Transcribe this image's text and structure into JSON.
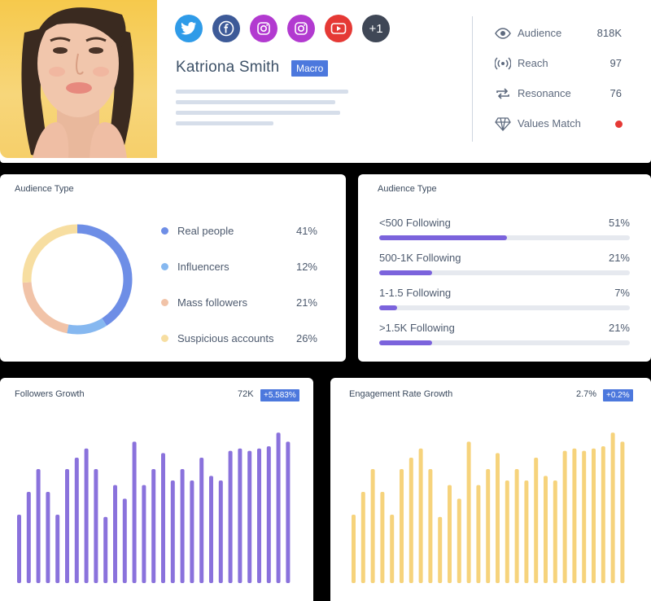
{
  "profile": {
    "name": "Katriona Smith",
    "badge": "Macro",
    "socials": [
      {
        "icon": "twitter-icon",
        "color": "#2f9be8"
      },
      {
        "icon": "facebook-icon",
        "color": "#3d5a98"
      },
      {
        "icon": "instagram-icon",
        "color": "#b23ad0"
      },
      {
        "icon": "instagram-icon",
        "color": "#b23ad0"
      },
      {
        "icon": "youtube-icon",
        "color": "#e53935"
      },
      {
        "icon": "more-icon",
        "color": "#3f4756"
      }
    ],
    "more_label": "+1",
    "stats": [
      {
        "icon": "eye-icon",
        "label": "Audience",
        "value": "818K"
      },
      {
        "icon": "broadcast-icon",
        "label": "Reach",
        "value": "97"
      },
      {
        "icon": "repeat-icon",
        "label": "Resonance",
        "value": "76"
      },
      {
        "icon": "diamond-icon",
        "label": "Values Match",
        "status_color": "#e53935"
      }
    ]
  },
  "audience_type": {
    "title": "Audience Type",
    "items": [
      {
        "label": "Real people",
        "value": "41%",
        "pct": 41,
        "color": "#6e8ee6"
      },
      {
        "label": "Influencers",
        "value": "12%",
        "pct": 12,
        "color": "#86b8f0"
      },
      {
        "label": "Mass followers",
        "value": "21%",
        "pct": 21,
        "color": "#f1c3a8"
      },
      {
        "label": "Suspicious accounts",
        "value": "26%",
        "pct": 26,
        "color": "#f7dea1"
      }
    ]
  },
  "following": {
    "title": "Audience Type",
    "items": [
      {
        "label": "<500 Following",
        "value": "51%",
        "pct": 51
      },
      {
        "label": "500-1K Following",
        "value": "21%",
        "pct": 21
      },
      {
        "label": "1-1.5 Following",
        "value": "7%",
        "pct": 7
      },
      {
        "label": ">1.5K Following",
        "value": "21%",
        "pct": 21
      }
    ]
  },
  "followers_growth": {
    "title": "Followers Growth",
    "value": "72K",
    "change": "+5.583%"
  },
  "engagement_growth": {
    "title": "Engagement Rate Growth",
    "value": "2.7%",
    "change": "+0.2%"
  },
  "chart_data": [
    {
      "type": "bar",
      "title": "Followers Growth",
      "color": "#8a72dc",
      "values": [
        30,
        40,
        50,
        40,
        30,
        50,
        55,
        59,
        50,
        29,
        43,
        37,
        62,
        43,
        50,
        57,
        45,
        50,
        45,
        55,
        47,
        45,
        58,
        59,
        58,
        59,
        60,
        66,
        62
      ]
    },
    {
      "type": "bar",
      "title": "Engagement Rate Growth",
      "color": "#f6d37c",
      "values": [
        30,
        40,
        50,
        40,
        30,
        50,
        55,
        59,
        50,
        29,
        43,
        37,
        62,
        43,
        50,
        57,
        45,
        50,
        45,
        55,
        47,
        45,
        58,
        59,
        58,
        59,
        60,
        66,
        62
      ]
    }
  ]
}
